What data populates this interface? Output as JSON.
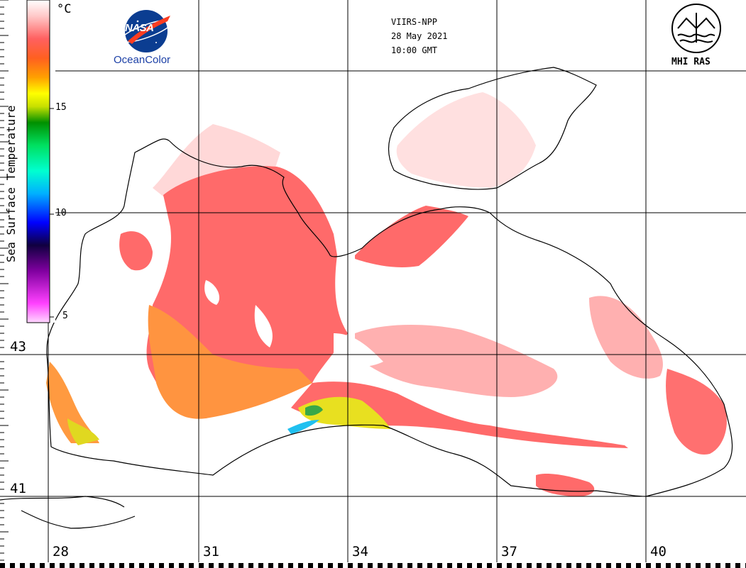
{
  "header": {
    "satellite": "VIIRS-NPP",
    "date": "28 May 2021",
    "time": "10:00 GMT"
  },
  "logos": {
    "nasa": "NASA",
    "oceancolor": "OceanColor",
    "mhi": "MHI RAS"
  },
  "colorbar": {
    "title": "Sea Surface Temperature",
    "unit": "°C",
    "range": [
      4,
      20
    ],
    "ticks": [
      "5",
      "10",
      "15"
    ],
    "colors": [
      "#ffd8ff",
      "#ff40ff",
      "#8000a0",
      "#100040",
      "#0000ff",
      "#00b0ff",
      "#00ffd0",
      "#00e060",
      "#009000",
      "#c8e000",
      "#ffff00",
      "#ffa000",
      "#ff6020",
      "#ff6060",
      "#ffc8c8",
      "#ffffff"
    ]
  },
  "grid": {
    "lon_labels": [
      "28",
      "31",
      "34",
      "37",
      "40"
    ],
    "lat_labels": [
      "43",
      "41"
    ]
  },
  "map_colors": {
    "sst_warm": "#ff6a6a",
    "sst_hot": "#ff9a40",
    "sst_mid": "#e8e000",
    "sst_cool": "#38a848",
    "sst_cold": "#20c0f0",
    "sst_pale": "#ffd0d0"
  }
}
